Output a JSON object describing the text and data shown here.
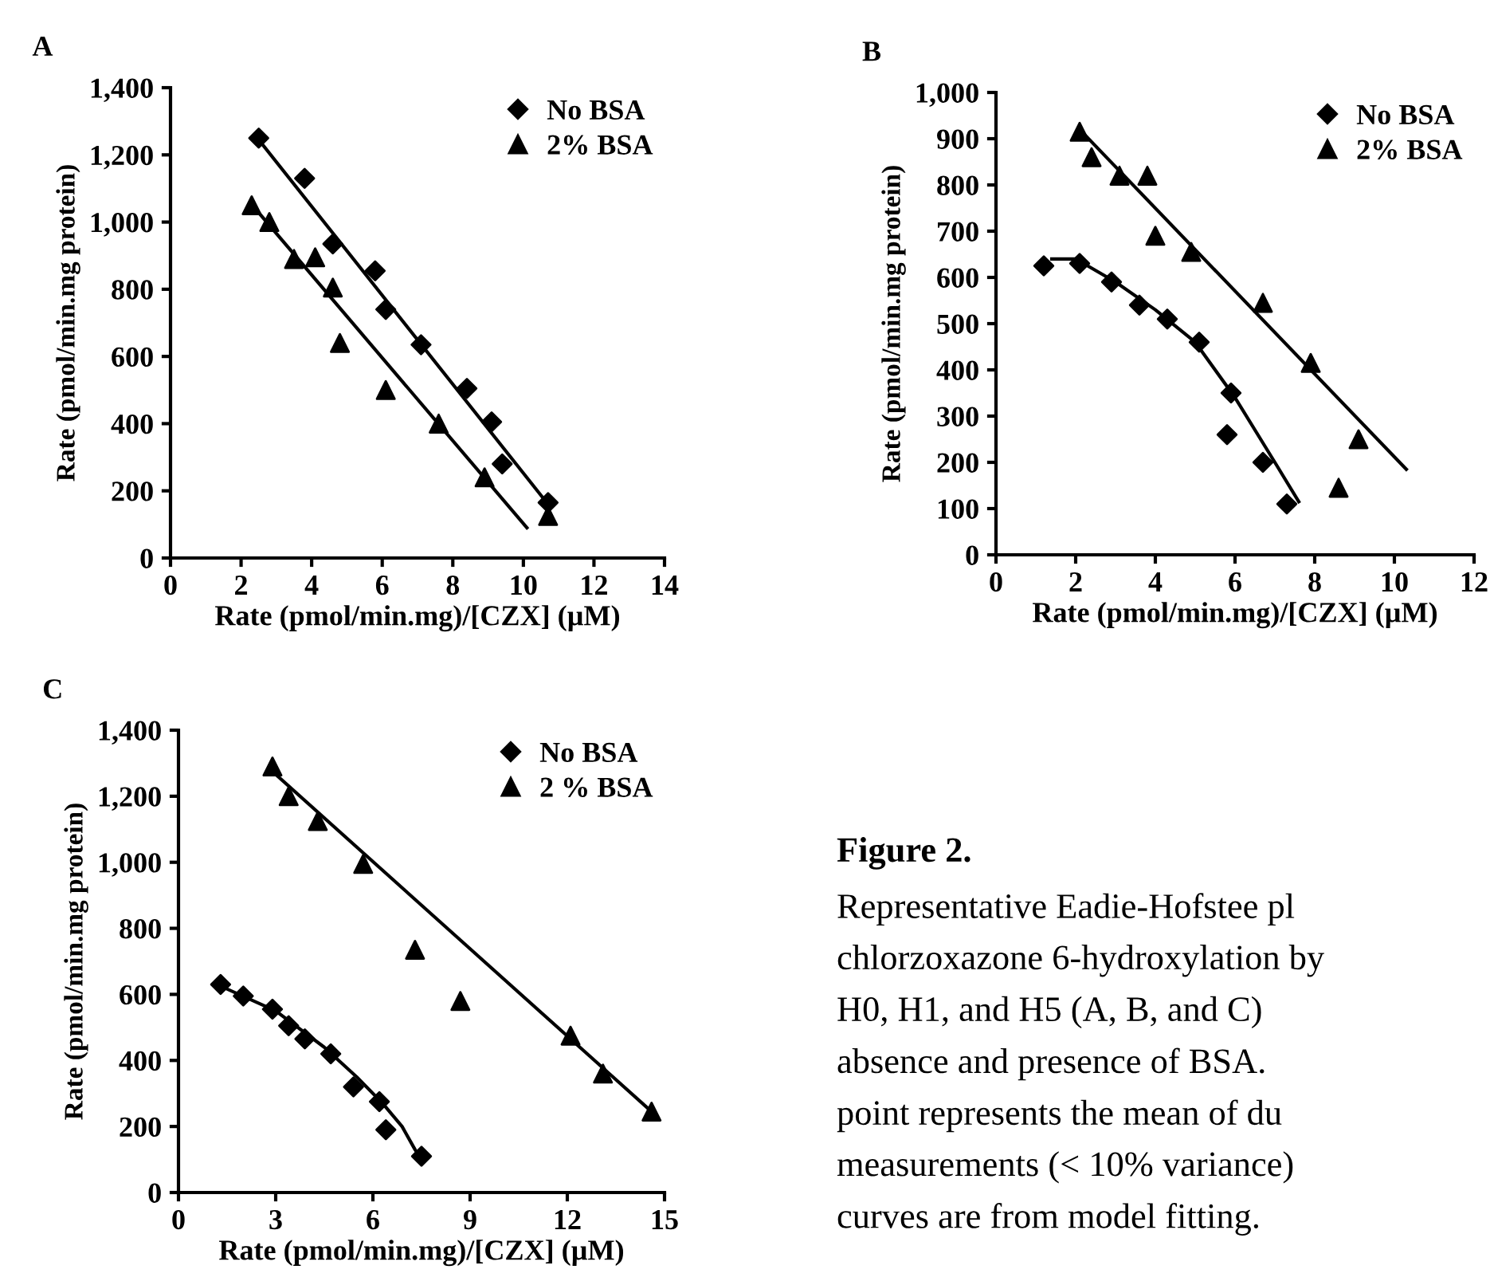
{
  "chart_data": [
    {
      "type": "scatter",
      "title": "A",
      "xlabel": "Rate (pmol/min.mg)/[CZX] (µM)",
      "ylabel": "Rate (pmol/min.mg protein)",
      "xlim": [
        0,
        14
      ],
      "xticks": [
        0,
        2,
        4,
        6,
        8,
        10,
        12,
        14
      ],
      "ylim": [
        0,
        1400
      ],
      "yticks": [
        0,
        200,
        400,
        600,
        800,
        {
          "value": 1000,
          "label": "1,000"
        },
        {
          "value": 1200,
          "label": "1,200"
        },
        {
          "value": 1400,
          "label": "1,400"
        }
      ],
      "grid": false,
      "legend": "top right",
      "series": [
        {
          "name": "No BSA",
          "type": "scatter",
          "marker": "diamond",
          "color": "#000000",
          "x": [
            2.5,
            3.8,
            4.6,
            5.8,
            6.1,
            7.1,
            8.4,
            9.1,
            9.4,
            10.7
          ],
          "values": [
            1250,
            1130,
            935,
            855,
            740,
            635,
            505,
            405,
            280,
            165
          ]
        },
        {
          "name": "2% BSA",
          "type": "scatter",
          "marker": "triangle",
          "color": "#000000",
          "x": [
            2.3,
            2.8,
            3.5,
            4.1,
            4.6,
            4.8,
            6.1,
            7.6,
            8.9,
            10.7
          ],
          "values": [
            1050,
            1000,
            890,
            895,
            805,
            640,
            500,
            400,
            240,
            125
          ]
        },
        {
          "type": "line",
          "marker": "none",
          "color": "#000000",
          "x": [
            2.5,
            10.7
          ],
          "values": [
            1245,
            160
          ]
        },
        {
          "type": "line",
          "marker": "none",
          "color": "#000000",
          "x": [
            2.4,
            10.1
          ],
          "values": [
            1040,
            90
          ]
        }
      ]
    },
    {
      "type": "scatter",
      "title": "B",
      "xlabel": "Rate (pmol/min.mg)/[CZX] (µM)",
      "ylabel": "Rate (pmol/min.mg protein)",
      "xlim": [
        0,
        12
      ],
      "xticks": [
        0,
        2,
        4,
        6,
        8,
        10,
        12
      ],
      "ylim": [
        0,
        1000
      ],
      "yticks": [
        0,
        100,
        200,
        300,
        400,
        500,
        600,
        700,
        800,
        900,
        {
          "value": 1000,
          "label": "1,000"
        }
      ],
      "grid": false,
      "legend": "top right",
      "series": [
        {
          "name": "No BSA",
          "type": "scatter",
          "marker": "diamond",
          "color": "#000000",
          "x": [
            1.2,
            2.1,
            2.9,
            3.6,
            4.3,
            5.1,
            5.9,
            5.8,
            6.7,
            7.3
          ],
          "values": [
            625,
            630,
            590,
            540,
            510,
            460,
            350,
            260,
            200,
            110
          ]
        },
        {
          "name": "2% BSA",
          "type": "scatter",
          "marker": "triangle",
          "color": "#000000",
          "x": [
            2.1,
            2.4,
            3.1,
            3.8,
            4.0,
            4.9,
            6.7,
            7.9,
            8.6,
            9.1
          ],
          "values": [
            915,
            860,
            820,
            820,
            690,
            655,
            545,
            415,
            145,
            250
          ]
        },
        {
          "type": "line",
          "marker": "none",
          "color": "#000000",
          "x": [
            1.4,
            2.0,
            3.0,
            4.0,
            5.0,
            6.0,
            7.0,
            7.6
          ],
          "values": [
            640,
            640,
            590,
            530,
            460,
            340,
            200,
            115
          ]
        },
        {
          "type": "line",
          "marker": "none",
          "color": "#000000",
          "x": [
            2.1,
            10.3
          ],
          "values": [
            920,
            185
          ]
        }
      ]
    },
    {
      "type": "scatter",
      "title": "C",
      "xlabel": "Rate (pmol/min.mg)/[CZX] (µM)",
      "ylabel": "Rate (pmol/min.mg protein)",
      "xlim": [
        0,
        15
      ],
      "xticks": [
        0,
        3,
        6,
        9,
        12,
        15
      ],
      "ylim": [
        0,
        1400
      ],
      "yticks": [
        0,
        200,
        400,
        600,
        800,
        {
          "value": 1000,
          "label": "1,000"
        },
        {
          "value": 1200,
          "label": "1,200"
        },
        {
          "value": 1400,
          "label": "1,400"
        }
      ],
      "grid": false,
      "legend": "top right",
      "series": [
        {
          "name": "No BSA",
          "type": "scatter",
          "marker": "diamond",
          "color": "#000000",
          "x": [
            1.3,
            2.0,
            2.9,
            3.4,
            3.9,
            4.7,
            5.4,
            6.2,
            6.4,
            7.5
          ],
          "values": [
            630,
            595,
            555,
            505,
            465,
            420,
            320,
            275,
            190,
            110
          ]
        },
        {
          "name": "2 % BSA",
          "type": "scatter",
          "marker": "triangle",
          "color": "#000000",
          "x": [
            2.9,
            3.4,
            4.3,
            5.7,
            7.3,
            8.7,
            12.1,
            13.1,
            14.6
          ],
          "values": [
            1290,
            1200,
            1125,
            995,
            735,
            580,
            475,
            360,
            245
          ]
        },
        {
          "type": "line",
          "marker": "none",
          "color": "#000000",
          "x": [
            1.3,
            3.0,
            4.5,
            5.5,
            6.3,
            6.9,
            7.3,
            7.5
          ],
          "values": [
            625,
            550,
            440,
            350,
            270,
            200,
            130,
            100
          ]
        },
        {
          "type": "line",
          "marker": "none",
          "color": "#000000",
          "x": [
            2.9,
            14.6
          ],
          "values": [
            1275,
            245
          ]
        }
      ]
    },
    {
      "type": "other",
      "title": "Figure 2.",
      "annotations": [
        "Representative Eadie-Hofstee pl",
        "chlorzoxazone 6-hydroxylation by",
        "H0, H1, and H5 (A, B, and C)",
        "absence and presence of BSA.",
        "point represents the mean of du",
        "measurements (< 10% variance)",
        "curves are from model fitting."
      ]
    }
  ]
}
